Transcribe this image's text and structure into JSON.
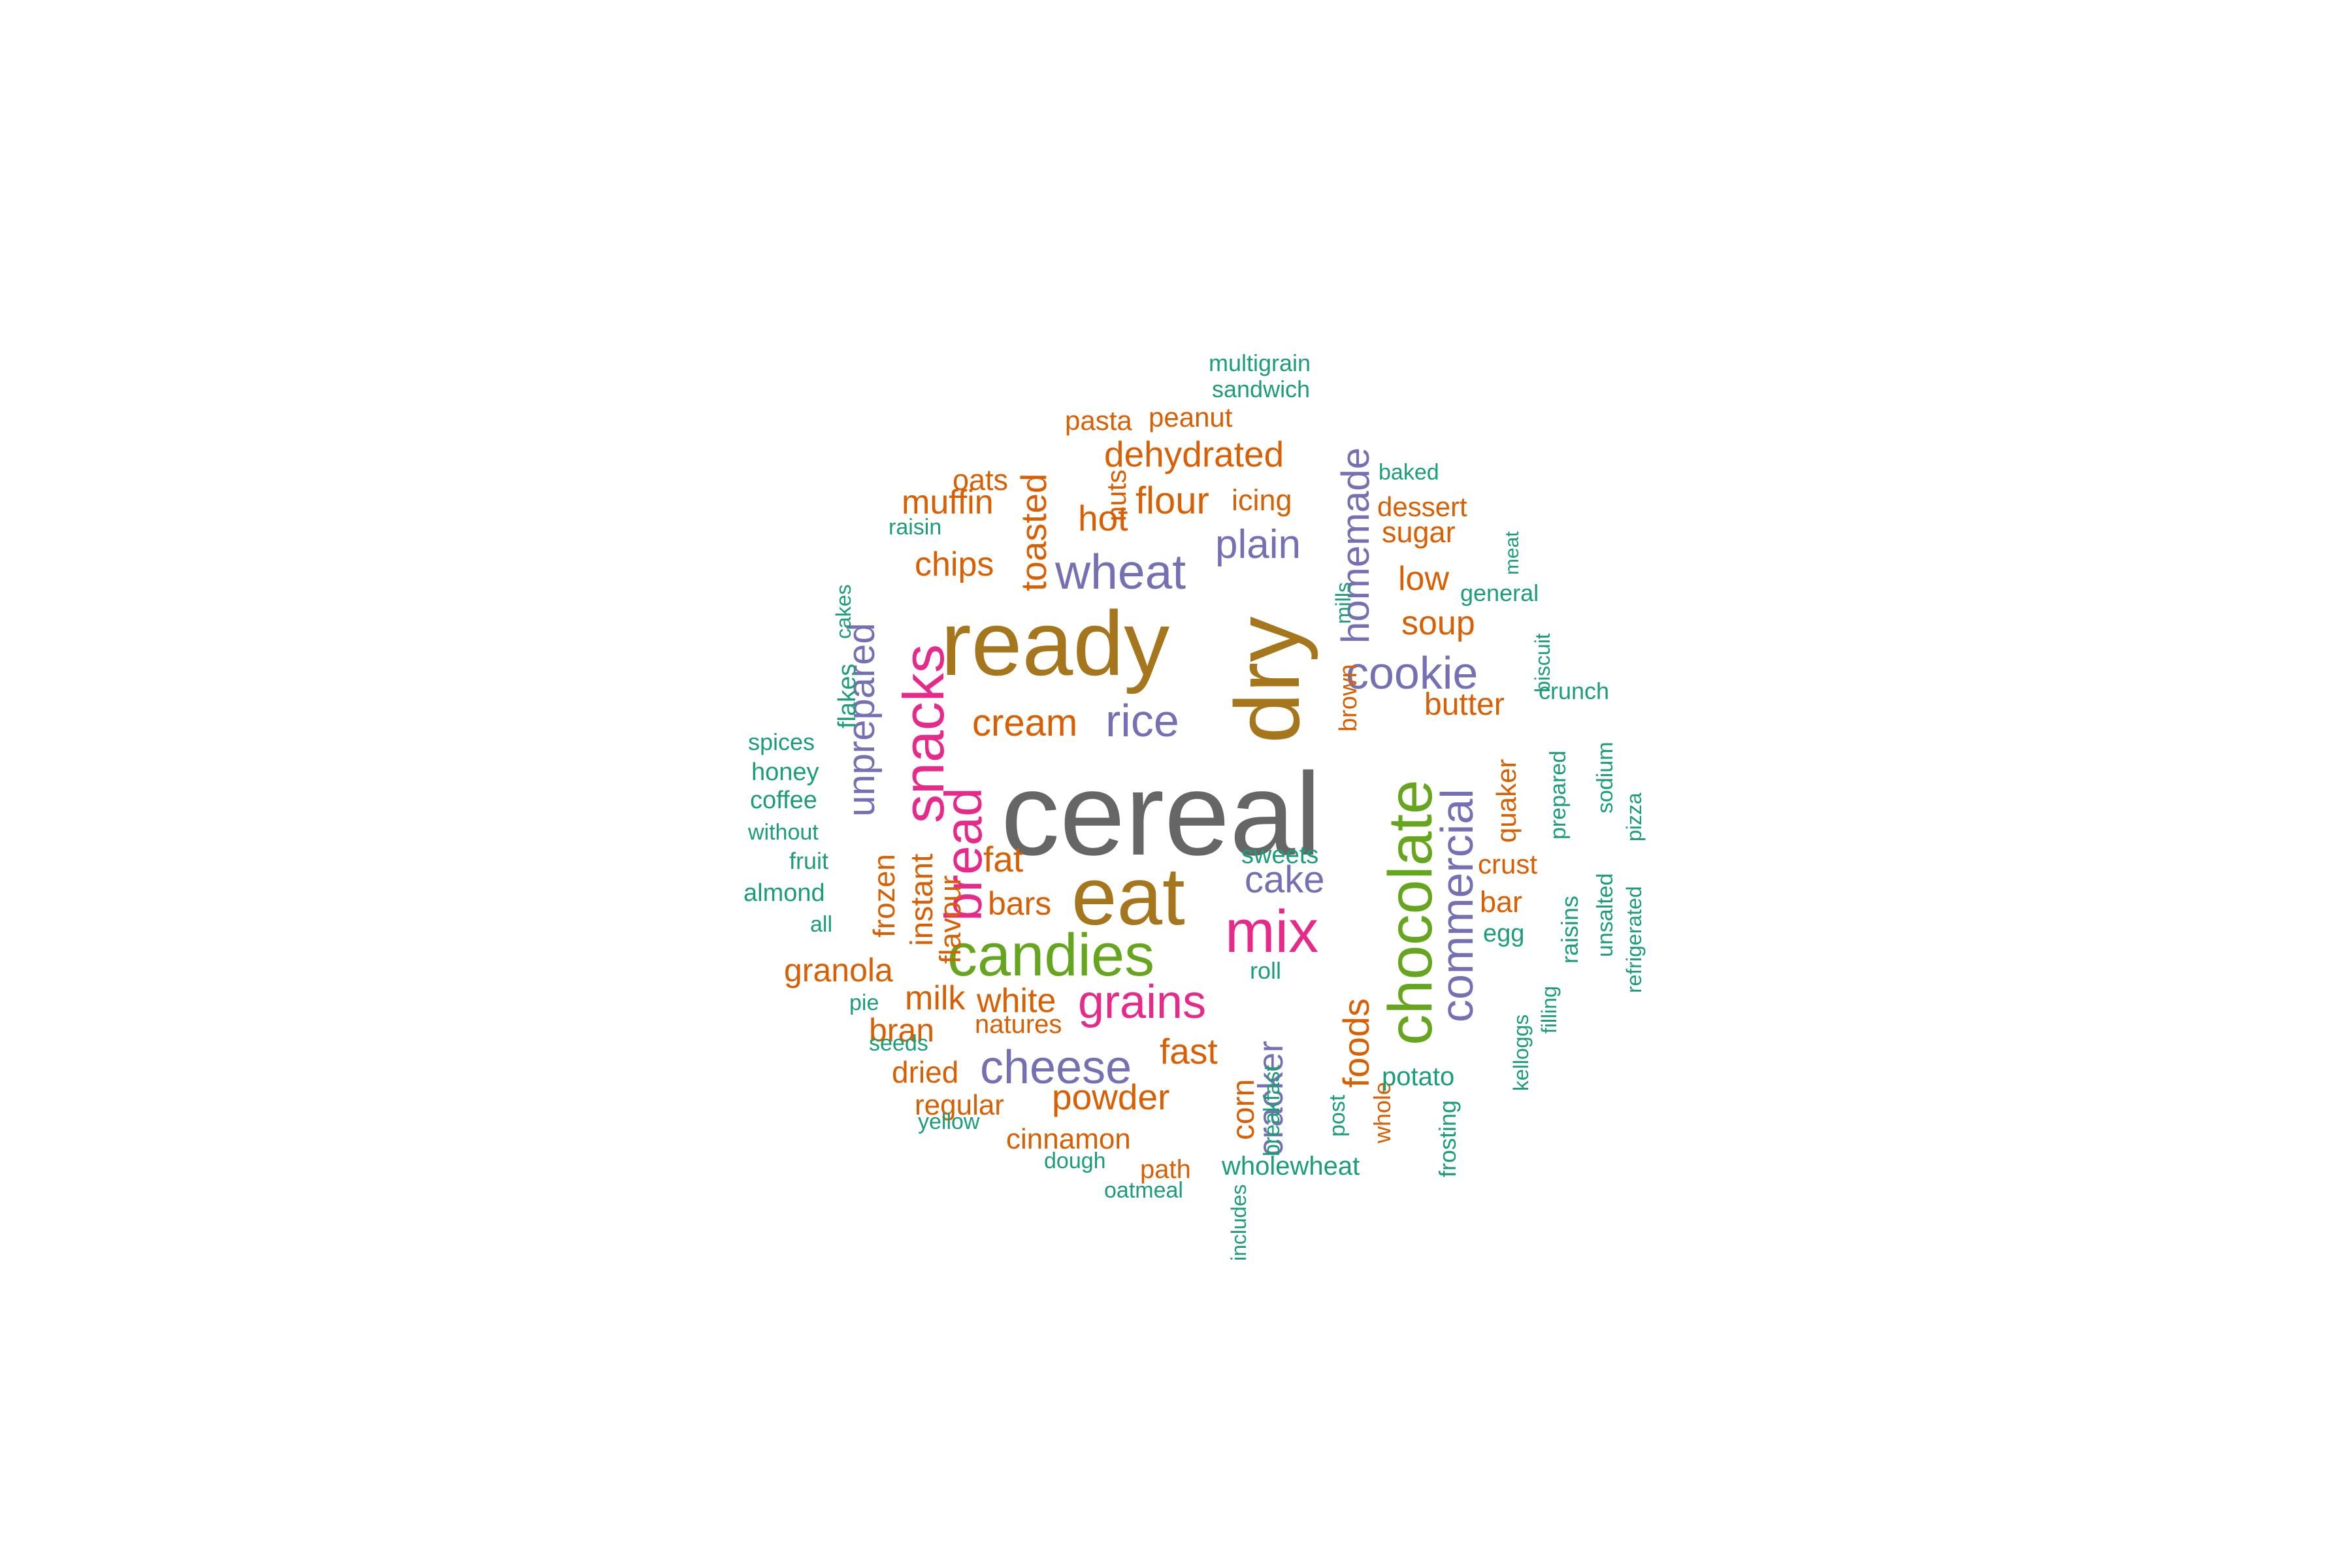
{
  "palette": {
    "teal": "#1b9e77",
    "orange": "#d95f02",
    "purple": "#7570b3",
    "pink": "#e7298a",
    "green": "#66a61e",
    "gold": "#a6761d",
    "gray": "#666666"
  },
  "words": [
    {
      "text": "cereal",
      "color": "gray",
      "orientation": "horizontal"
    },
    {
      "text": "ready",
      "color": "gold",
      "orientation": "horizontal"
    },
    {
      "text": "dry",
      "color": "gold",
      "orientation": "vertical"
    },
    {
      "text": "eat",
      "color": "gold",
      "orientation": "horizontal"
    },
    {
      "text": "chocolate",
      "color": "green",
      "orientation": "vertical"
    },
    {
      "text": "candies",
      "color": "green",
      "orientation": "horizontal"
    },
    {
      "text": "snacks",
      "color": "pink",
      "orientation": "vertical"
    },
    {
      "text": "mix",
      "color": "pink",
      "orientation": "horizontal"
    },
    {
      "text": "bread",
      "color": "pink",
      "orientation": "vertical"
    },
    {
      "text": "grains",
      "color": "pink",
      "orientation": "horizontal"
    },
    {
      "text": "wheat",
      "color": "purple",
      "orientation": "horizontal"
    },
    {
      "text": "unprepared",
      "color": "purple",
      "orientation": "vertical"
    },
    {
      "text": "commercial",
      "color": "purple",
      "orientation": "vertical"
    },
    {
      "text": "homemade",
      "color": "purple",
      "orientation": "vertical"
    },
    {
      "text": "cookie",
      "color": "purple",
      "orientation": "horizontal"
    },
    {
      "text": "cheese",
      "color": "purple",
      "orientation": "horizontal"
    },
    {
      "text": "rice",
      "color": "purple",
      "orientation": "horizontal"
    },
    {
      "text": "plain",
      "color": "purple",
      "orientation": "horizontal"
    },
    {
      "text": "cake",
      "color": "purple",
      "orientation": "horizontal"
    },
    {
      "text": "cracker",
      "color": "purple",
      "orientation": "vertical"
    },
    {
      "text": "dehydrated",
      "color": "orange",
      "orientation": "horizontal"
    },
    {
      "text": "toasted",
      "color": "orange",
      "orientation": "vertical"
    },
    {
      "text": "flour",
      "color": "orange",
      "orientation": "horizontal"
    },
    {
      "text": "hot",
      "color": "orange",
      "orientation": "horizontal"
    },
    {
      "text": "muffin",
      "color": "orange",
      "orientation": "horizontal"
    },
    {
      "text": "chips",
      "color": "orange",
      "orientation": "horizontal"
    },
    {
      "text": "cream",
      "color": "orange",
      "orientation": "horizontal"
    },
    {
      "text": "fat",
      "color": "orange",
      "orientation": "horizontal"
    },
    {
      "text": "bars",
      "color": "orange",
      "orientation": "horizontal"
    },
    {
      "text": "instant",
      "color": "orange",
      "orientation": "vertical"
    },
    {
      "text": "frozen",
      "color": "orange",
      "orientation": "vertical"
    },
    {
      "text": "flavour",
      "color": "orange",
      "orientation": "vertical"
    },
    {
      "text": "granola",
      "color": "orange",
      "orientation": "horizontal"
    },
    {
      "text": "milk",
      "color": "orange",
      "orientation": "horizontal"
    },
    {
      "text": "white",
      "color": "orange",
      "orientation": "horizontal"
    },
    {
      "text": "bran",
      "color": "orange",
      "orientation": "horizontal"
    },
    {
      "text": "fast",
      "color": "orange",
      "orientation": "horizontal"
    },
    {
      "text": "powder",
      "color": "orange",
      "orientation": "horizontal"
    },
    {
      "text": "corn",
      "color": "orange",
      "orientation": "vertical"
    },
    {
      "text": "foods",
      "color": "orange",
      "orientation": "vertical"
    },
    {
      "text": "butter",
      "color": "orange",
      "orientation": "horizontal"
    },
    {
      "text": "quaker",
      "color": "orange",
      "orientation": "vertical"
    },
    {
      "text": "soup",
      "color": "orange",
      "orientation": "horizontal"
    },
    {
      "text": "low",
      "color": "orange",
      "orientation": "horizontal"
    },
    {
      "text": "sugar",
      "color": "orange",
      "orientation": "horizontal"
    },
    {
      "text": "dessert",
      "color": "orange",
      "orientation": "horizontal"
    },
    {
      "text": "icing",
      "color": "orange",
      "orientation": "horizontal"
    },
    {
      "text": "nuts",
      "color": "orange",
      "orientation": "vertical"
    },
    {
      "text": "oats",
      "color": "orange",
      "orientation": "horizontal"
    },
    {
      "text": "pasta",
      "color": "orange",
      "orientation": "horizontal"
    },
    {
      "text": "peanut",
      "color": "orange",
      "orientation": "horizontal"
    },
    {
      "text": "crust",
      "color": "orange",
      "orientation": "horizontal"
    },
    {
      "text": "bar",
      "color": "orange",
      "orientation": "horizontal"
    },
    {
      "text": "dried",
      "color": "orange",
      "orientation": "horizontal"
    },
    {
      "text": "regular",
      "color": "orange",
      "orientation": "horizontal"
    },
    {
      "text": "cinnamon",
      "color": "orange",
      "orientation": "horizontal"
    },
    {
      "text": "path",
      "color": "orange",
      "orientation": "horizontal"
    },
    {
      "text": "brown",
      "color": "orange",
      "orientation": "vertical"
    },
    {
      "text": "whole",
      "color": "orange",
      "orientation": "vertical"
    },
    {
      "text": "multigrain",
      "color": "teal",
      "orientation": "horizontal"
    },
    {
      "text": "sandwich",
      "color": "teal",
      "orientation": "horizontal"
    },
    {
      "text": "raisin",
      "color": "teal",
      "orientation": "horizontal"
    },
    {
      "text": "cakes",
      "color": "teal",
      "orientation": "vertical"
    },
    {
      "text": "flakes",
      "color": "teal",
      "orientation": "vertical"
    },
    {
      "text": "spices",
      "color": "teal",
      "orientation": "horizontal"
    },
    {
      "text": "honey",
      "color": "teal",
      "orientation": "horizontal"
    },
    {
      "text": "coffee",
      "color": "teal",
      "orientation": "horizontal"
    },
    {
      "text": "without",
      "color": "teal",
      "orientation": "horizontal"
    },
    {
      "text": "fruit",
      "color": "teal",
      "orientation": "horizontal"
    },
    {
      "text": "almond",
      "color": "teal",
      "orientation": "horizontal"
    },
    {
      "text": "all",
      "color": "teal",
      "orientation": "horizontal"
    },
    {
      "text": "pie",
      "color": "teal",
      "orientation": "horizontal"
    },
    {
      "text": "seeds",
      "color": "teal",
      "orientation": "horizontal"
    },
    {
      "text": "yellow",
      "color": "teal",
      "orientation": "horizontal"
    },
    {
      "text": "natures",
      "color": "orange",
      "orientation": "horizontal"
    },
    {
      "text": "dough",
      "color": "teal",
      "orientation": "horizontal"
    },
    {
      "text": "oatmeal",
      "color": "teal",
      "orientation": "horizontal"
    },
    {
      "text": "includes",
      "color": "teal",
      "orientation": "vertical"
    },
    {
      "text": "breakfast",
      "color": "teal",
      "orientation": "vertical"
    },
    {
      "text": "wholewheat",
      "color": "teal",
      "orientation": "horizontal"
    },
    {
      "text": "post",
      "color": "teal",
      "orientation": "vertical"
    },
    {
      "text": "sweets",
      "color": "teal",
      "orientation": "horizontal"
    },
    {
      "text": "roll",
      "color": "teal",
      "orientation": "horizontal"
    },
    {
      "text": "mills",
      "color": "teal",
      "orientation": "vertical"
    },
    {
      "text": "baked",
      "color": "teal",
      "orientation": "horizontal"
    },
    {
      "text": "meat",
      "color": "teal",
      "orientation": "vertical"
    },
    {
      "text": "general",
      "color": "teal",
      "orientation": "horizontal"
    },
    {
      "text": "biscuit",
      "color": "teal",
      "orientation": "vertical"
    },
    {
      "text": "crunch",
      "color": "teal",
      "orientation": "horizontal"
    },
    {
      "text": "prepared",
      "color": "teal",
      "orientation": "vertical"
    },
    {
      "text": "sodium",
      "color": "teal",
      "orientation": "vertical"
    },
    {
      "text": "pizza",
      "color": "teal",
      "orientation": "vertical"
    },
    {
      "text": "unsalted",
      "color": "teal",
      "orientation": "vertical"
    },
    {
      "text": "refrigerated",
      "color": "teal",
      "orientation": "vertical"
    },
    {
      "text": "raisins",
      "color": "teal",
      "orientation": "vertical"
    },
    {
      "text": "egg",
      "color": "teal",
      "orientation": "horizontal"
    },
    {
      "text": "filling",
      "color": "teal",
      "orientation": "vertical"
    },
    {
      "text": "kelloggs",
      "color": "teal",
      "orientation": "vertical"
    },
    {
      "text": "potato",
      "color": "teal",
      "orientation": "horizontal"
    },
    {
      "text": "frosting",
      "color": "teal",
      "orientation": "vertical"
    }
  ]
}
